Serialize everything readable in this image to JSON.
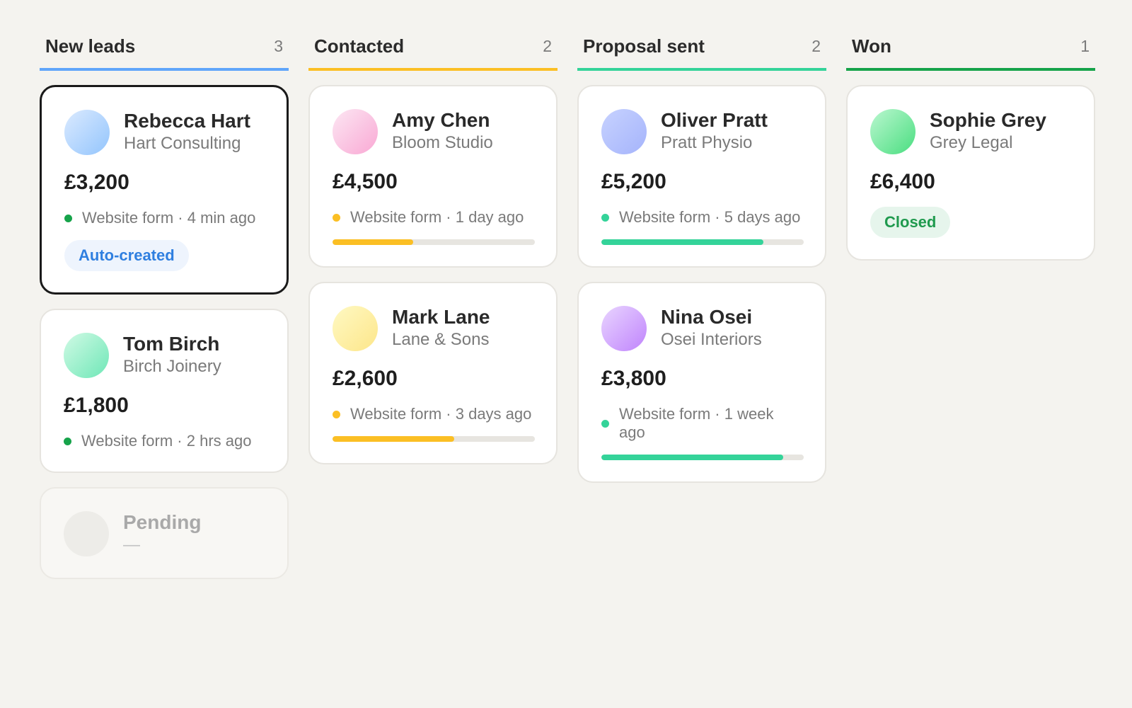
{
  "columns": [
    {
      "title": "New leads",
      "count": "3",
      "accent": "#60a5fa",
      "cards": [
        {
          "name": "Rebecca Hart",
          "company": "Hart Consulting",
          "amount": "£3,200",
          "activity": "Website form · 4 min ago",
          "dot_color": "#16a34a",
          "badge": "Auto-created",
          "badge_style": "blue",
          "selected": true,
          "avatar_gradient": [
            "#dbeafe",
            "#93c5fd"
          ]
        },
        {
          "name": "Tom Birch",
          "company": "Birch Joinery",
          "amount": "£1,800",
          "activity": "Website form · 2 hrs ago",
          "dot_color": "#16a34a",
          "avatar_gradient": [
            "#d1fae5",
            "#6ee7b7"
          ]
        },
        {
          "name": "Pending",
          "company": "—",
          "pending": true,
          "avatar_gradient": [
            "#edece8",
            "#edece8"
          ]
        }
      ]
    },
    {
      "title": "Contacted",
      "count": "2",
      "accent": "#fbbf24",
      "cards": [
        {
          "name": "Amy Chen",
          "company": "Bloom Studio",
          "amount": "£4,500",
          "activity": "Website form · 1 day ago",
          "dot_color": "#fbbf24",
          "progress": 0.4,
          "progress_color": "#fbbf24",
          "avatar_gradient": [
            "#fce7f3",
            "#f9a8d4"
          ]
        },
        {
          "name": "Mark Lane",
          "company": "Lane & Sons",
          "amount": "£2,600",
          "activity": "Website form · 3 days ago",
          "dot_color": "#fbbf24",
          "progress": 0.6,
          "progress_color": "#fbbf24",
          "avatar_gradient": [
            "#fef9c3",
            "#fde68a"
          ]
        }
      ]
    },
    {
      "title": "Proposal sent",
      "count": "2",
      "accent": "#34d399",
      "cards": [
        {
          "name": "Oliver Pratt",
          "company": "Pratt Physio",
          "amount": "£5,200",
          "activity": "Website form · 5 days ago",
          "dot_color": "#34d399",
          "progress": 0.8,
          "progress_color": "#34d399",
          "avatar_gradient": [
            "#c7d2fe",
            "#a5b4fc"
          ]
        },
        {
          "name": "Nina Osei",
          "company": "Osei Interiors",
          "amount": "£3,800",
          "activity": "Website form · 1 week ago",
          "dot_color": "#34d399",
          "progress": 0.9,
          "progress_color": "#34d399",
          "avatar_gradient": [
            "#e9d5ff",
            "#c084fc"
          ]
        }
      ]
    },
    {
      "title": "Won",
      "count": "1",
      "accent": "#16a34a",
      "cards": [
        {
          "name": "Sophie Grey",
          "company": "Grey Legal",
          "amount": "£6,400",
          "badge": "Closed",
          "badge_style": "green",
          "avatar_gradient": [
            "#bbf7d0",
            "#4ade80"
          ]
        }
      ]
    }
  ]
}
